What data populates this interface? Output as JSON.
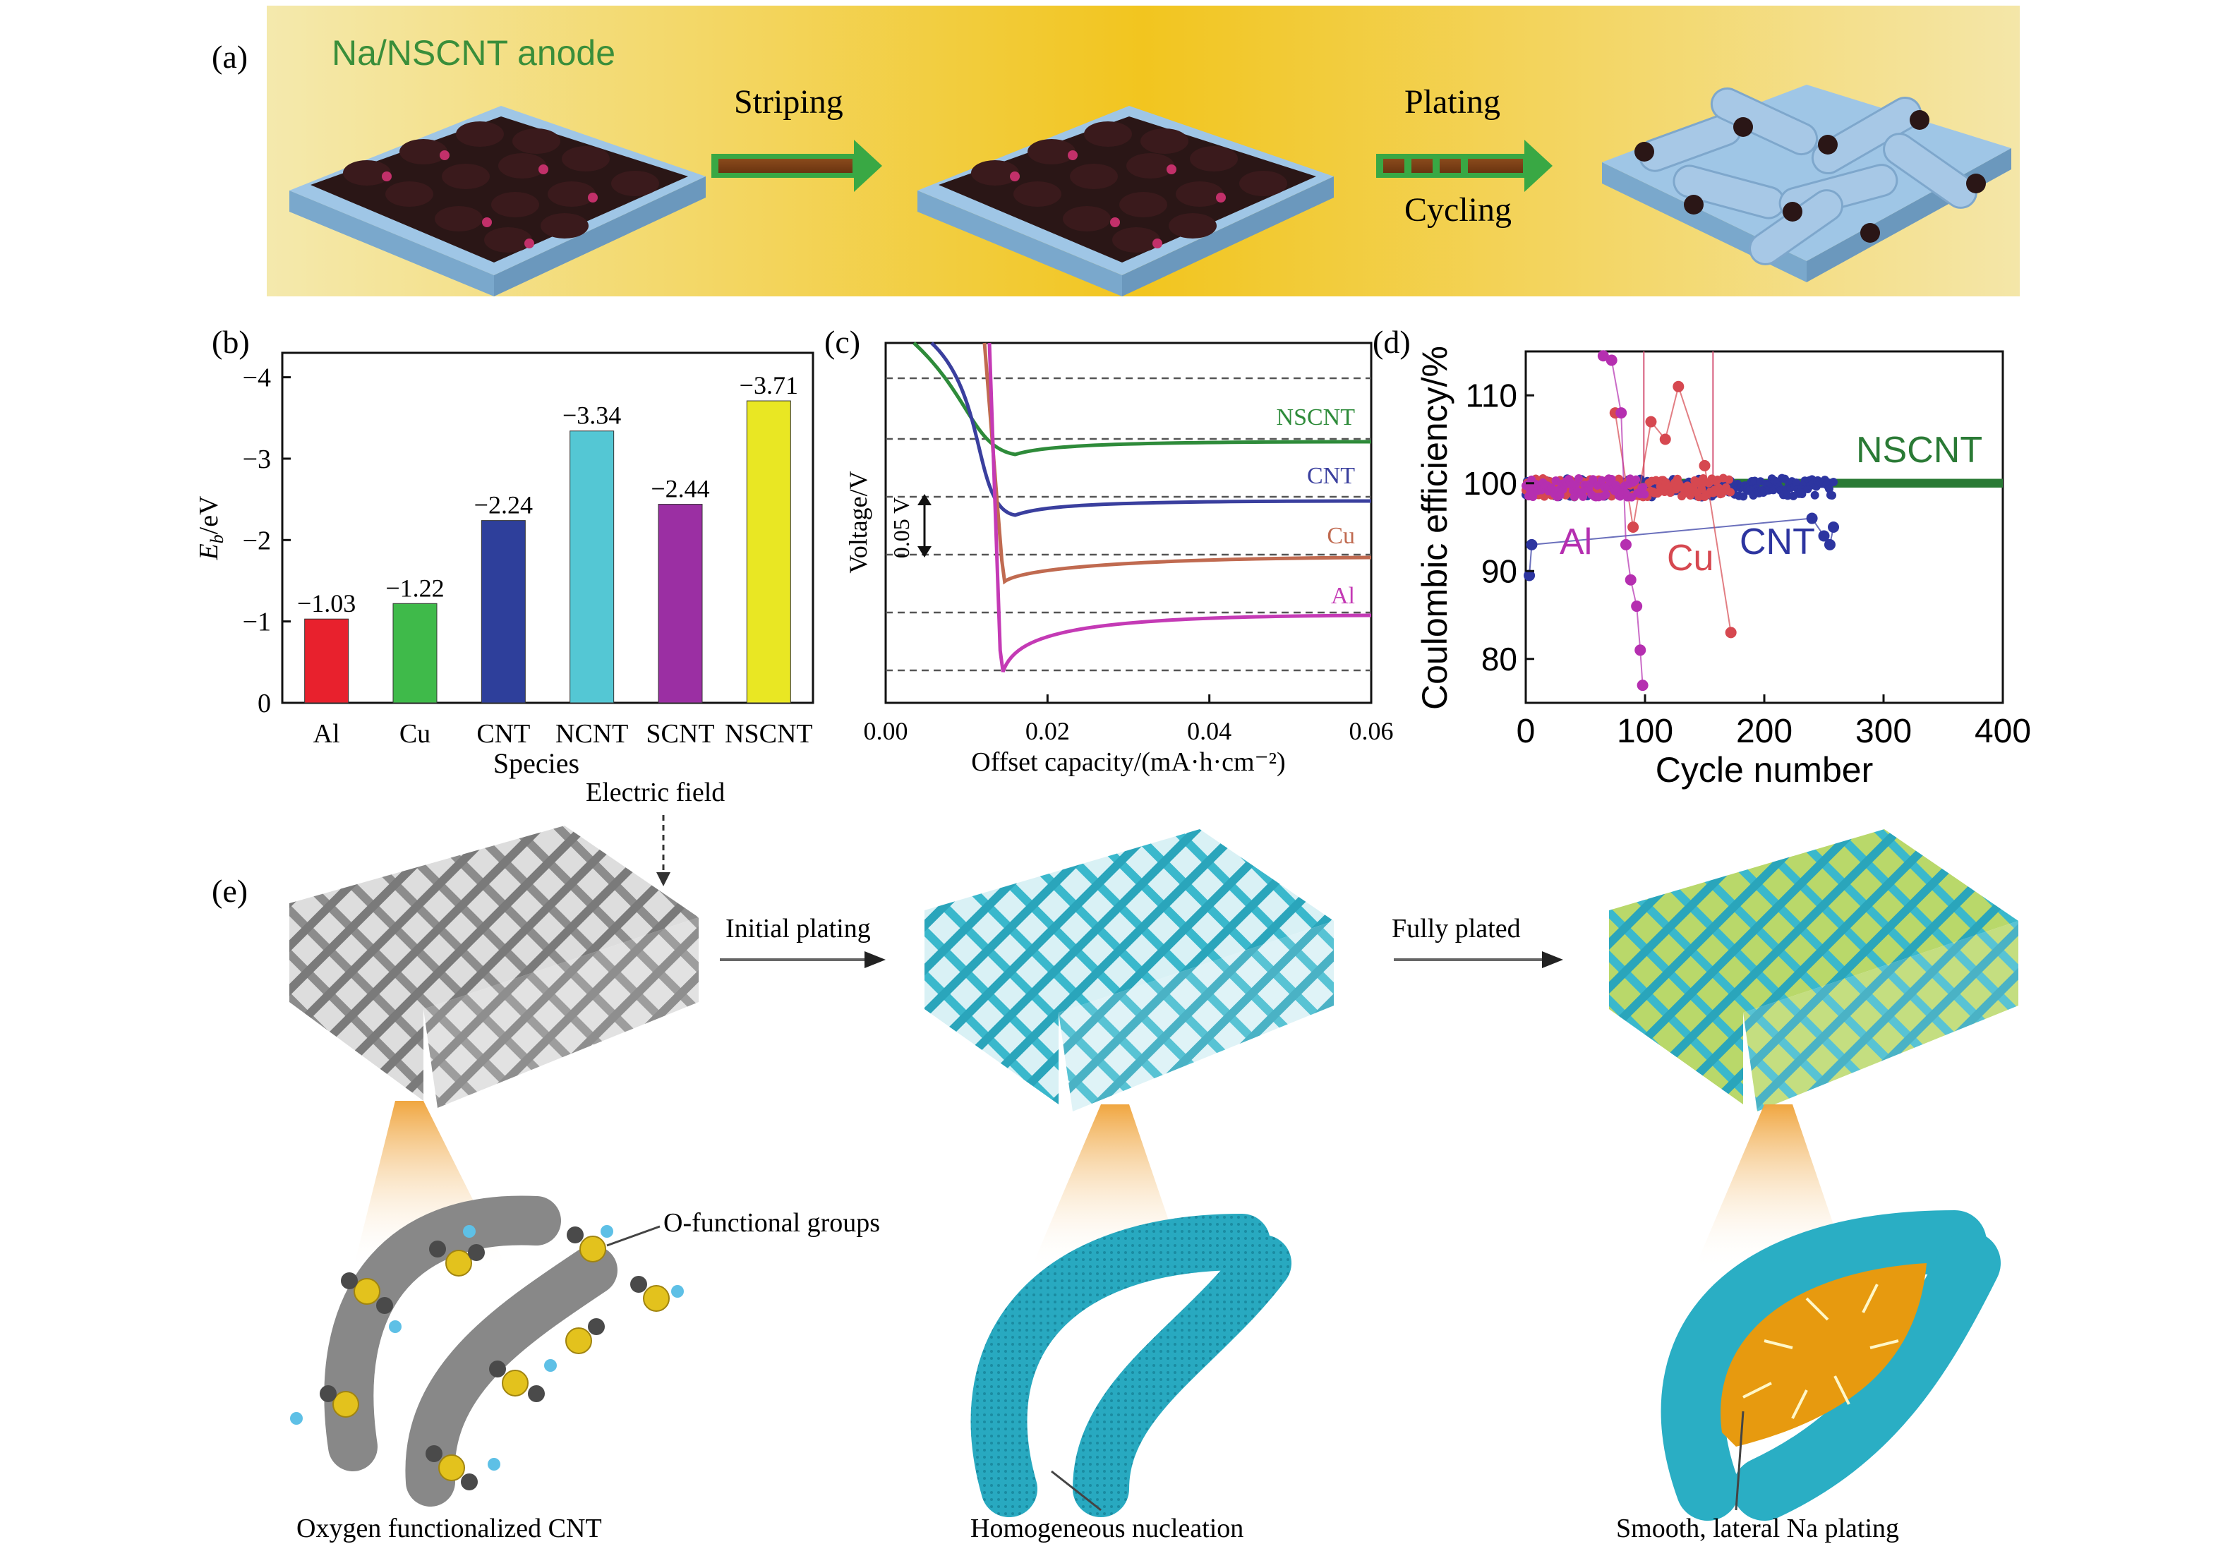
{
  "panel_a": {
    "label": "(a)",
    "title": "Na/NSCNT anode",
    "arrow1_label": "Striping",
    "arrow2_label_top": "Plating",
    "arrow2_label_bottom": "Cycling"
  },
  "panel_e": {
    "label": "(e)",
    "electric_field": "Electric field",
    "arrow1_label": "Initial plating",
    "arrow2_label": "Fully plated",
    "callout_groups": "O-functional groups",
    "caption_left": "Oxygen functionalized CNT",
    "caption_mid": "Homogeneous nucleation",
    "caption_right": "Smooth, lateral Na plating"
  },
  "colors": {
    "banner_center": "#f3c21a",
    "banner_edge": "#f4e7a6",
    "arrow_green": "#39a844",
    "arrow_brown": "#8a4a1c",
    "substrate_blue": "#9fc6e6",
    "cnt_grey": "#8f8f8f",
    "cnt_cyan": "#38b7cc",
    "na_orange": "#e79a0f"
  },
  "chart_data": [
    {
      "panel": "(b)",
      "type": "bar",
      "categories": [
        "Al",
        "Cu",
        "CNT",
        "NCNT",
        "SCNT",
        "NSCNT"
      ],
      "values": [
        -1.03,
        -1.22,
        -2.24,
        -3.34,
        -2.44,
        -3.71
      ],
      "value_labels": [
        "−1.03",
        "−1.22",
        "−2.24",
        "−3.34",
        "−2.44",
        "−3.71"
      ],
      "colors": [
        "#e8212d",
        "#3fba4a",
        "#2e3f9b",
        "#54c7d4",
        "#9b2fa3",
        "#e9e723"
      ],
      "xlabel": "Species",
      "ylabel_main": "E",
      "ylabel_sub": "b",
      "ylabel_unit": "/eV",
      "ylim": [
        0,
        -4.3
      ],
      "yticks": [
        0,
        -1,
        -2,
        -3,
        -4
      ],
      "ytick_labels": [
        "0",
        "−1",
        "−2",
        "−3",
        "−4"
      ],
      "inverted_y": true
    },
    {
      "panel": "(c)",
      "type": "line",
      "xlabel": "Offset capacity/(mA·h·cm⁻²)",
      "ylabel": "Voltage/V",
      "xlim": [
        0,
        0.06
      ],
      "xticks": [
        0,
        0.02,
        0.04,
        0.06
      ],
      "xtick_labels": [
        "0.00",
        "0.02",
        "0.04",
        "0.06"
      ],
      "scale_bar_label": "0.05 V",
      "offset_traces": true,
      "dashed_guides": 6,
      "series": [
        {
          "name": "NSCNT",
          "color": "#2e8b3a",
          "nucleation_x": 0.016,
          "plateau_overpotential_v": 0.0
        },
        {
          "name": "CNT",
          "color": "#3a3f9e",
          "nucleation_x": 0.016,
          "plateau_overpotential_v": 0.0
        },
        {
          "name": "Cu",
          "color": "#c06a50",
          "nucleation_x": 0.0147,
          "plateau_overpotential_v": 0.0
        },
        {
          "name": "Al",
          "color": "#c43ab5",
          "nucleation_x": 0.0145,
          "plateau_overpotential_v": 0.0
        }
      ]
    },
    {
      "panel": "(d)",
      "type": "scatter",
      "xlabel": "Cycle number",
      "ylabel": "Coulombic efficiency/%",
      "xlim": [
        0,
        400
      ],
      "ylim": [
        75,
        115
      ],
      "xticks": [
        0,
        100,
        200,
        300,
        400
      ],
      "yticks": [
        80,
        90,
        100,
        110
      ],
      "series": [
        {
          "name": "NSCNT",
          "color": "#2a7a35",
          "cycles_x": [
            0,
            400
          ],
          "ce_percent_mean": 100,
          "outliers": []
        },
        {
          "name": "CNT",
          "color": "#2d35a0",
          "cycles_x": [
            0,
            258
          ],
          "ce_percent_mean": 99.5,
          "outliers": [
            [
              3,
              89.5
            ],
            [
              5,
              93
            ],
            [
              240,
              96
            ],
            [
              250,
              94
            ],
            [
              255,
              93
            ],
            [
              258,
              95
            ]
          ]
        },
        {
          "name": "Cu",
          "color": "#d64850",
          "cycles_x": [
            0,
            172
          ],
          "ce_percent_mean": 99.5,
          "outliers": [
            [
              75,
              108
            ],
            [
              90,
              95
            ],
            [
              105,
              107
            ],
            [
              117,
              105
            ],
            [
              128,
              111
            ],
            [
              150,
              102
            ],
            [
              172,
              83
            ]
          ]
        },
        {
          "name": "Al",
          "color": "#b52fb0",
          "cycles_x": [
            0,
            100
          ],
          "ce_percent_mean": 99.5,
          "outliers": [
            [
              65,
              114.5
            ],
            [
              72,
              114
            ],
            [
              80,
              108
            ],
            [
              84,
              93
            ],
            [
              88,
              89
            ],
            [
              93,
              86
            ],
            [
              96,
              81
            ],
            [
              98,
              77
            ]
          ]
        }
      ],
      "spike_lines": [
        [
          157,
          115
        ],
        [
          99,
          115
        ]
      ]
    }
  ]
}
